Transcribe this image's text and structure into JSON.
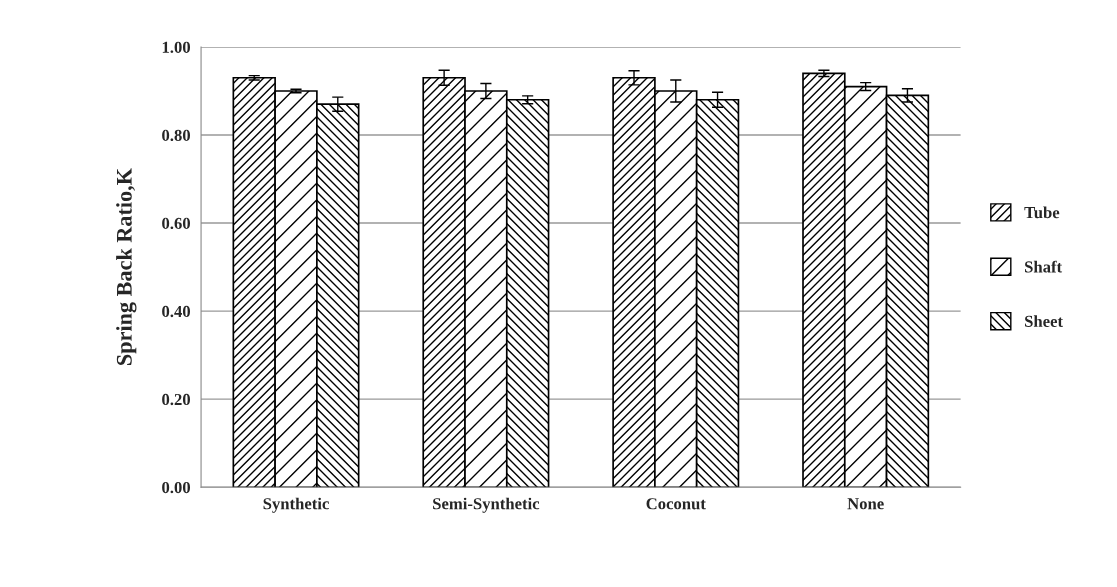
{
  "chart_data": {
    "type": "bar",
    "ylabel": "Spring Back Ratio,K",
    "categories": [
      "Synthetic",
      "Semi-Synthetic",
      "Coconut",
      "None"
    ],
    "series": [
      {
        "name": "Tube",
        "color": "#000000",
        "values": [
          0.93,
          0.93,
          0.93,
          0.94
        ],
        "errors": [
          0.005,
          0.017,
          0.016,
          0.007
        ]
      },
      {
        "name": "Shaft",
        "color": "#000000",
        "values": [
          0.9,
          0.9,
          0.9,
          0.91
        ],
        "errors": [
          0.004,
          0.017,
          0.025,
          0.009
        ]
      },
      {
        "name": "Sheet",
        "color": "#000000",
        "values": [
          0.87,
          0.88,
          0.88,
          0.89
        ],
        "errors": [
          0.016,
          0.009,
          0.017,
          0.015
        ]
      }
    ],
    "ylim": [
      0,
      1
    ],
    "yticks": [
      {
        "value": 0,
        "label": "0.00"
      },
      {
        "value": 0.2,
        "label": "0.20"
      },
      {
        "value": 0.4,
        "label": "0.40"
      },
      {
        "value": 0.6,
        "label": "0.60"
      },
      {
        "value": 0.8,
        "label": "0.80"
      },
      {
        "value": 1,
        "label": "1.00"
      }
    ],
    "grid": "y",
    "legend": "right"
  }
}
